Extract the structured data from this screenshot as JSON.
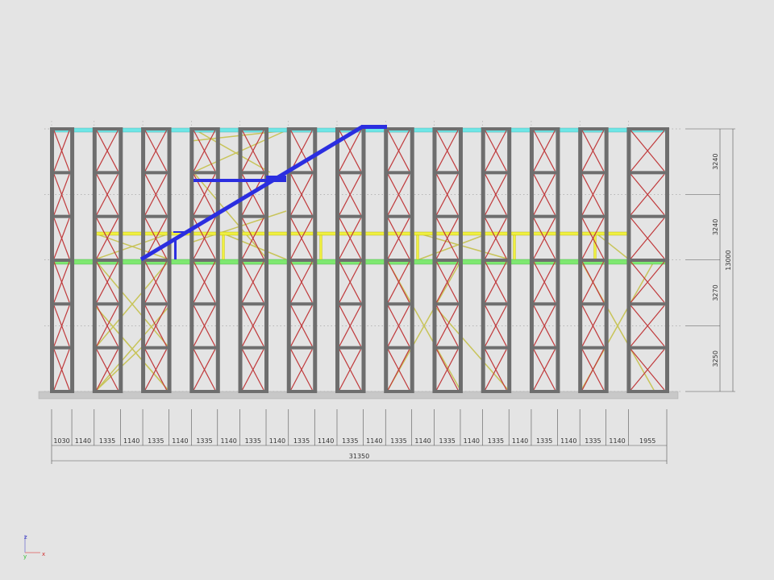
{
  "drawing": {
    "horizontal_dimensions": [
      "1030",
      "1140",
      "1335",
      "1140",
      "1335",
      "1140",
      "1335",
      "1140",
      "1335",
      "1140",
      "1335",
      "1140",
      "1335",
      "1140",
      "1335",
      "1140",
      "1335",
      "1140",
      "1335",
      "1140",
      "1335",
      "1140",
      "1335",
      "1140",
      "1955"
    ],
    "horizontal_total": "31350",
    "vertical_dimensions": [
      "3240",
      "3240",
      "3270",
      "3250"
    ],
    "vertical_total": "13000"
  },
  "axis_triad": {
    "z_label": "z",
    "x_label": "x",
    "y_label": "y"
  },
  "colors": {
    "background": "#e4e4e4",
    "frame_member": "#6e6e6e",
    "frame_bracing": "#c0393b",
    "top_beam": "#6ee6e6",
    "mid_beam": "#7ee870",
    "yellow_beam": "#f0f040",
    "diagonal_bracing": "#c8c45a",
    "stair": "#2b2ee0",
    "ground": "#c8c8c8"
  }
}
